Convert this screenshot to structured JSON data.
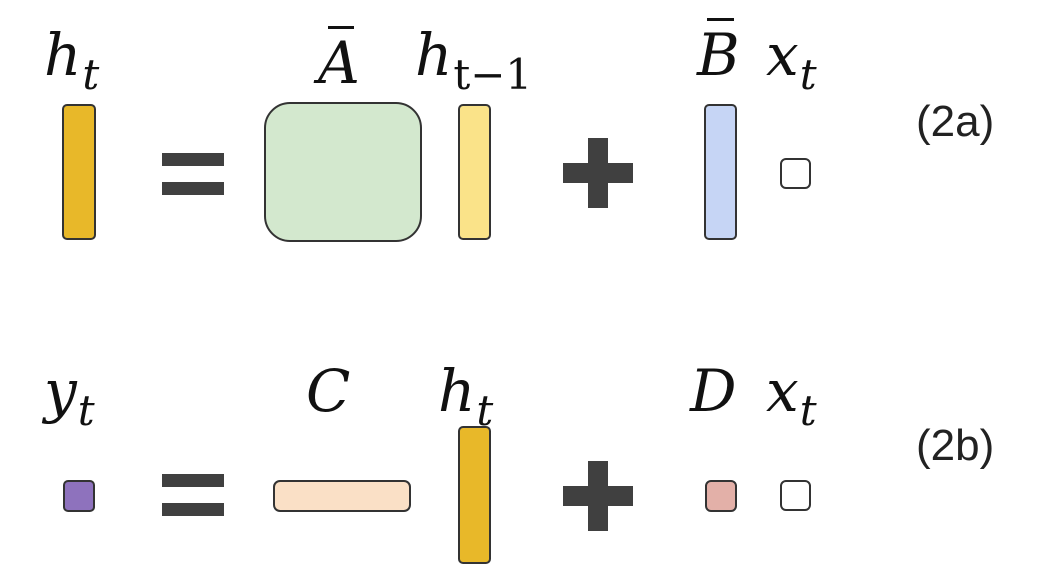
{
  "equation_a": {
    "label": "(2a)",
    "lhs": {
      "symbol": "h",
      "subscript": "t"
    },
    "term1_matrix": {
      "symbol": "A"
    },
    "term1_vector": {
      "symbol": "h",
      "subscript": "t−1"
    },
    "term2_matrix": {
      "symbol": "B"
    },
    "term2_input": {
      "symbol": "x",
      "subscript": "t"
    }
  },
  "equation_b": {
    "label": "(2b)",
    "lhs": {
      "symbol": "y",
      "subscript": "t"
    },
    "term1_matrix": {
      "symbol": "C"
    },
    "term1_vector": {
      "symbol": "h",
      "subscript": "t"
    },
    "term2_matrix": {
      "symbol": "D"
    },
    "term2_input": {
      "symbol": "x",
      "subscript": "t"
    }
  },
  "colors": {
    "h_t": "#e8b829",
    "h_t_minus_1": "#fae389",
    "A_bar": "#d3e8ce",
    "B_bar": "#c6d5f5",
    "x_t": "#ffffff",
    "y_t": "#8e72bd",
    "C": "#fae0c6",
    "D": "#e3b0a8",
    "operator": "#404040",
    "outline": "#333333"
  }
}
